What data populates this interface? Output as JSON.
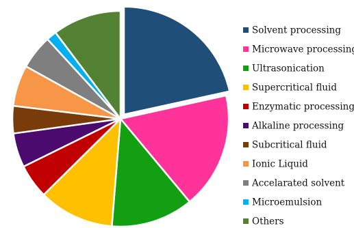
{
  "chart_data": {
    "type": "pie",
    "title": "",
    "slices": [
      {
        "label": "Solvent processing",
        "value": 21,
        "color": "#1F4E79"
      },
      {
        "label": "Microwave processing",
        "value": 17,
        "color": "#FF3399"
      },
      {
        "label": "Ultrasonication",
        "value": 12,
        "color": "#12A012"
      },
      {
        "label": "Supercritical fluid",
        "value": 11,
        "color": "#FFC000"
      },
      {
        "label": "Enzymatic processing",
        "value": 5,
        "color": "#C00000"
      },
      {
        "label": "Alkaline processing",
        "value": 5,
        "color": "#4B0A6E"
      },
      {
        "label": "Subcritical fluid",
        "value": 4,
        "color": "#7A3B0A"
      },
      {
        "label": "Ionic Liquid",
        "value": 6,
        "color": "#F79646"
      },
      {
        "label": "Accelarated solvent",
        "value": 5,
        "color": "#7F7F7F"
      },
      {
        "label": "Microemulsion",
        "value": 1.5,
        "color": "#00B0F0"
      },
      {
        "label": "Others",
        "value": 10,
        "color": "#548235"
      }
    ],
    "exploded_slice": "Solvent processing",
    "legend_position": "right"
  }
}
